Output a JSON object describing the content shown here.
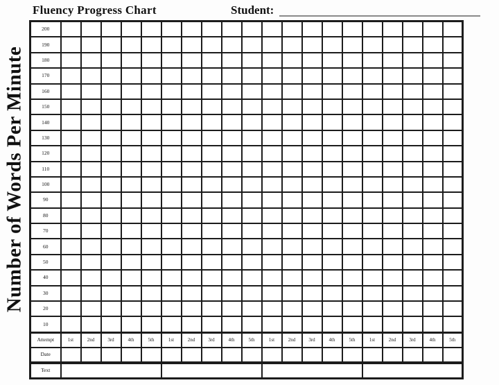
{
  "header": {
    "title": "Fluency Progress Chart",
    "student_label": "Student:",
    "student_value": ""
  },
  "y_axis_label": "Number of Words Per Minute",
  "grid": {
    "y_values": [
      "200",
      "190",
      "180",
      "170",
      "160",
      "150",
      "140",
      "130",
      "120",
      "110",
      "100",
      "90",
      "80",
      "70",
      "60",
      "50",
      "40",
      "30",
      "20",
      "10"
    ],
    "groups": 4,
    "columns_per_group": 5,
    "attempt_row_label": "Attempt",
    "attempt_labels": [
      "1st",
      "2nd",
      "3rd",
      "4th",
      "5th"
    ],
    "date_row_label": "Date",
    "text_row_label": "Text"
  },
  "chart_data": {
    "type": "table",
    "title": "Fluency Progress Chart",
    "ylabel": "Number of Words Per Minute",
    "y_ticks": [
      200,
      190,
      180,
      170,
      160,
      150,
      140,
      130,
      120,
      110,
      100,
      90,
      80,
      70,
      60,
      50,
      40,
      30,
      20,
      10
    ],
    "ylim": [
      10,
      200
    ],
    "grid": "on",
    "x_attempt_groups": 4,
    "attempt_labels_per_group": [
      "1st",
      "2nd",
      "3rd",
      "4th",
      "5th"
    ],
    "bottom_rows": [
      "Attempt",
      "Date",
      "Text"
    ],
    "series": []
  },
  "colors": {
    "grid_line": "#1c1c1c",
    "underline": "#8a8a8a",
    "background": "#fdfdfd",
    "text": "#111111"
  }
}
